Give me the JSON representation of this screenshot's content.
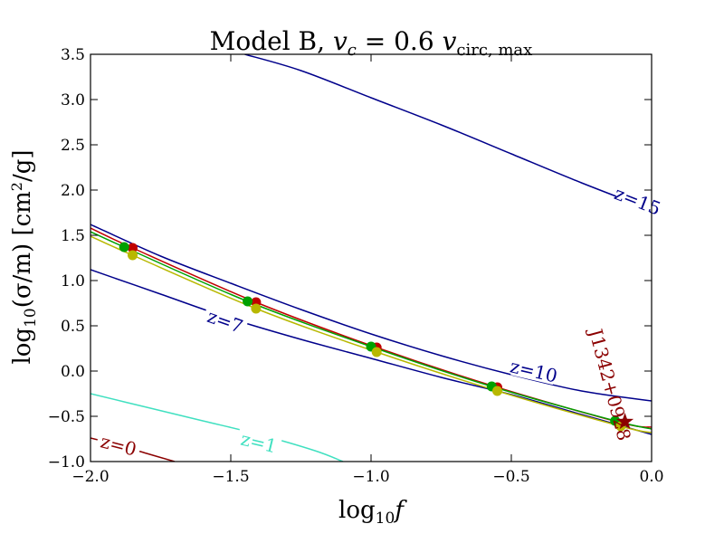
{
  "chart_data": {
    "type": "line",
    "title": "Model B, v_c = 0.6 v_circ,max",
    "title_parts": {
      "main": "Model B, ",
      "vc": "v",
      "vc_sub": "c",
      "eq": " = 0.6 ",
      "v": "v",
      "v_sub": "circ, max"
    },
    "xlabel": "log10 f",
    "xlabel_parts": {
      "main": "log",
      "sub": "10",
      "var": "f"
    },
    "ylabel": "log10(σ/m) [cm²/g]",
    "ylabel_parts": {
      "main": "log",
      "sub": "10",
      "rest": "(σ/m) [cm",
      "sup": "2",
      "end": "/g]"
    },
    "xlim": [
      -2.0,
      0.0
    ],
    "ylim": [
      -1.0,
      3.5
    ],
    "xticks": [
      -2.0,
      -1.5,
      -1.0,
      -0.5,
      0.0
    ],
    "xtick_labels": [
      "−2.0",
      "−1.5",
      "−1.0",
      "−0.5",
      "0.0"
    ],
    "yticks": [
      -1.0,
      -0.5,
      0.0,
      0.5,
      1.0,
      1.5,
      2.0,
      2.5,
      3.0,
      3.5
    ],
    "ytick_labels": [
      "−1.0",
      "−0.5",
      "0.0",
      "0.5",
      "1.0",
      "1.5",
      "2.0",
      "2.5",
      "3.0",
      "3.5"
    ],
    "contours": [
      {
        "name": "z=0",
        "label": "z=0",
        "color": "#8b0000",
        "x": [
          -2.0,
          -1.9,
          -1.8,
          -1.7
        ],
        "y": [
          -0.74,
          -0.82,
          -0.91,
          -1.0
        ],
        "label_pos": [
          -1.9,
          -0.82
        ]
      },
      {
        "name": "z=1",
        "label": "z=1",
        "color": "#40e0c0",
        "x": [
          -2.0,
          -1.8,
          -1.6,
          -1.4,
          -1.2,
          -1.1
        ],
        "y": [
          -0.25,
          -0.4,
          -0.55,
          -0.7,
          -0.88,
          -1.0
        ],
        "label_pos": [
          -1.4,
          -0.79
        ]
      },
      {
        "name": "z=7",
        "label": "z=7",
        "color": "#00008b",
        "x": [
          -2.0,
          -1.75,
          -1.5,
          -1.25,
          -1.0,
          -0.75,
          -0.5,
          -0.25,
          0.0
        ],
        "y": [
          1.12,
          0.85,
          0.58,
          0.35,
          0.14,
          -0.07,
          -0.26,
          -0.48,
          -0.7
        ],
        "label_pos": [
          -1.52,
          0.55
        ]
      },
      {
        "name": "z=10",
        "label": "z=10",
        "color": "#00008b",
        "x": [
          -2.0,
          -1.75,
          -1.5,
          -1.25,
          -1.0,
          -0.75,
          -0.5,
          -0.25,
          0.0
        ],
        "y": [
          1.62,
          1.27,
          0.97,
          0.68,
          0.41,
          0.17,
          -0.04,
          -0.22,
          -0.33
        ],
        "label_pos": [
          -0.42,
          -0.0
        ]
      },
      {
        "name": "z=15",
        "label": "z=15",
        "color": "#00008b",
        "x": [
          -1.45,
          -1.25,
          -1.0,
          -0.75,
          -0.5,
          -0.25,
          0.0
        ],
        "y": [
          3.5,
          3.32,
          3.02,
          2.72,
          2.4,
          2.08,
          1.78
        ],
        "label_pos": [
          -0.05,
          1.88
        ]
      }
    ],
    "series": [
      {
        "name": "red",
        "color": "#c00000",
        "x": [
          -2.0,
          -1.85,
          -1.41,
          -0.98,
          -0.55,
          -0.11,
          0.0
        ],
        "y": [
          1.58,
          1.36,
          0.76,
          0.26,
          -0.18,
          -0.57,
          -0.62
        ],
        "points": [
          [
            -1.85,
            1.36
          ],
          [
            -1.41,
            0.76
          ],
          [
            -0.98,
            0.26
          ],
          [
            -0.55,
            -0.18
          ]
        ]
      },
      {
        "name": "green",
        "color": "#00a000",
        "x": [
          -2.0,
          -1.88,
          -1.44,
          -1.0,
          -0.57,
          -0.13,
          0.0
        ],
        "y": [
          1.54,
          1.37,
          0.77,
          0.27,
          -0.17,
          -0.55,
          -0.64
        ],
        "points": [
          [
            -1.88,
            1.37
          ],
          [
            -1.44,
            0.77
          ],
          [
            -1.0,
            0.27
          ],
          [
            -0.57,
            -0.17
          ],
          [
            -0.13,
            -0.55
          ]
        ]
      },
      {
        "name": "yellow",
        "color": "#b8b800",
        "x": [
          -2.0,
          -1.85,
          -1.41,
          -0.98,
          -0.55,
          -0.11,
          0.0
        ],
        "y": [
          1.49,
          1.28,
          0.69,
          0.21,
          -0.22,
          -0.61,
          -0.68
        ],
        "points": [
          [
            -1.85,
            1.28
          ],
          [
            -1.41,
            0.69
          ],
          [
            -0.98,
            0.21
          ],
          [
            -0.55,
            -0.22
          ],
          [
            -0.11,
            -0.61
          ]
        ]
      }
    ],
    "annotation": {
      "text": "J1342+0928",
      "color": "#8b0000",
      "star": [
        -0.095,
        -0.56
      ],
      "label_pos": [
        -0.17,
        -0.17
      ],
      "rotation": 75
    }
  }
}
